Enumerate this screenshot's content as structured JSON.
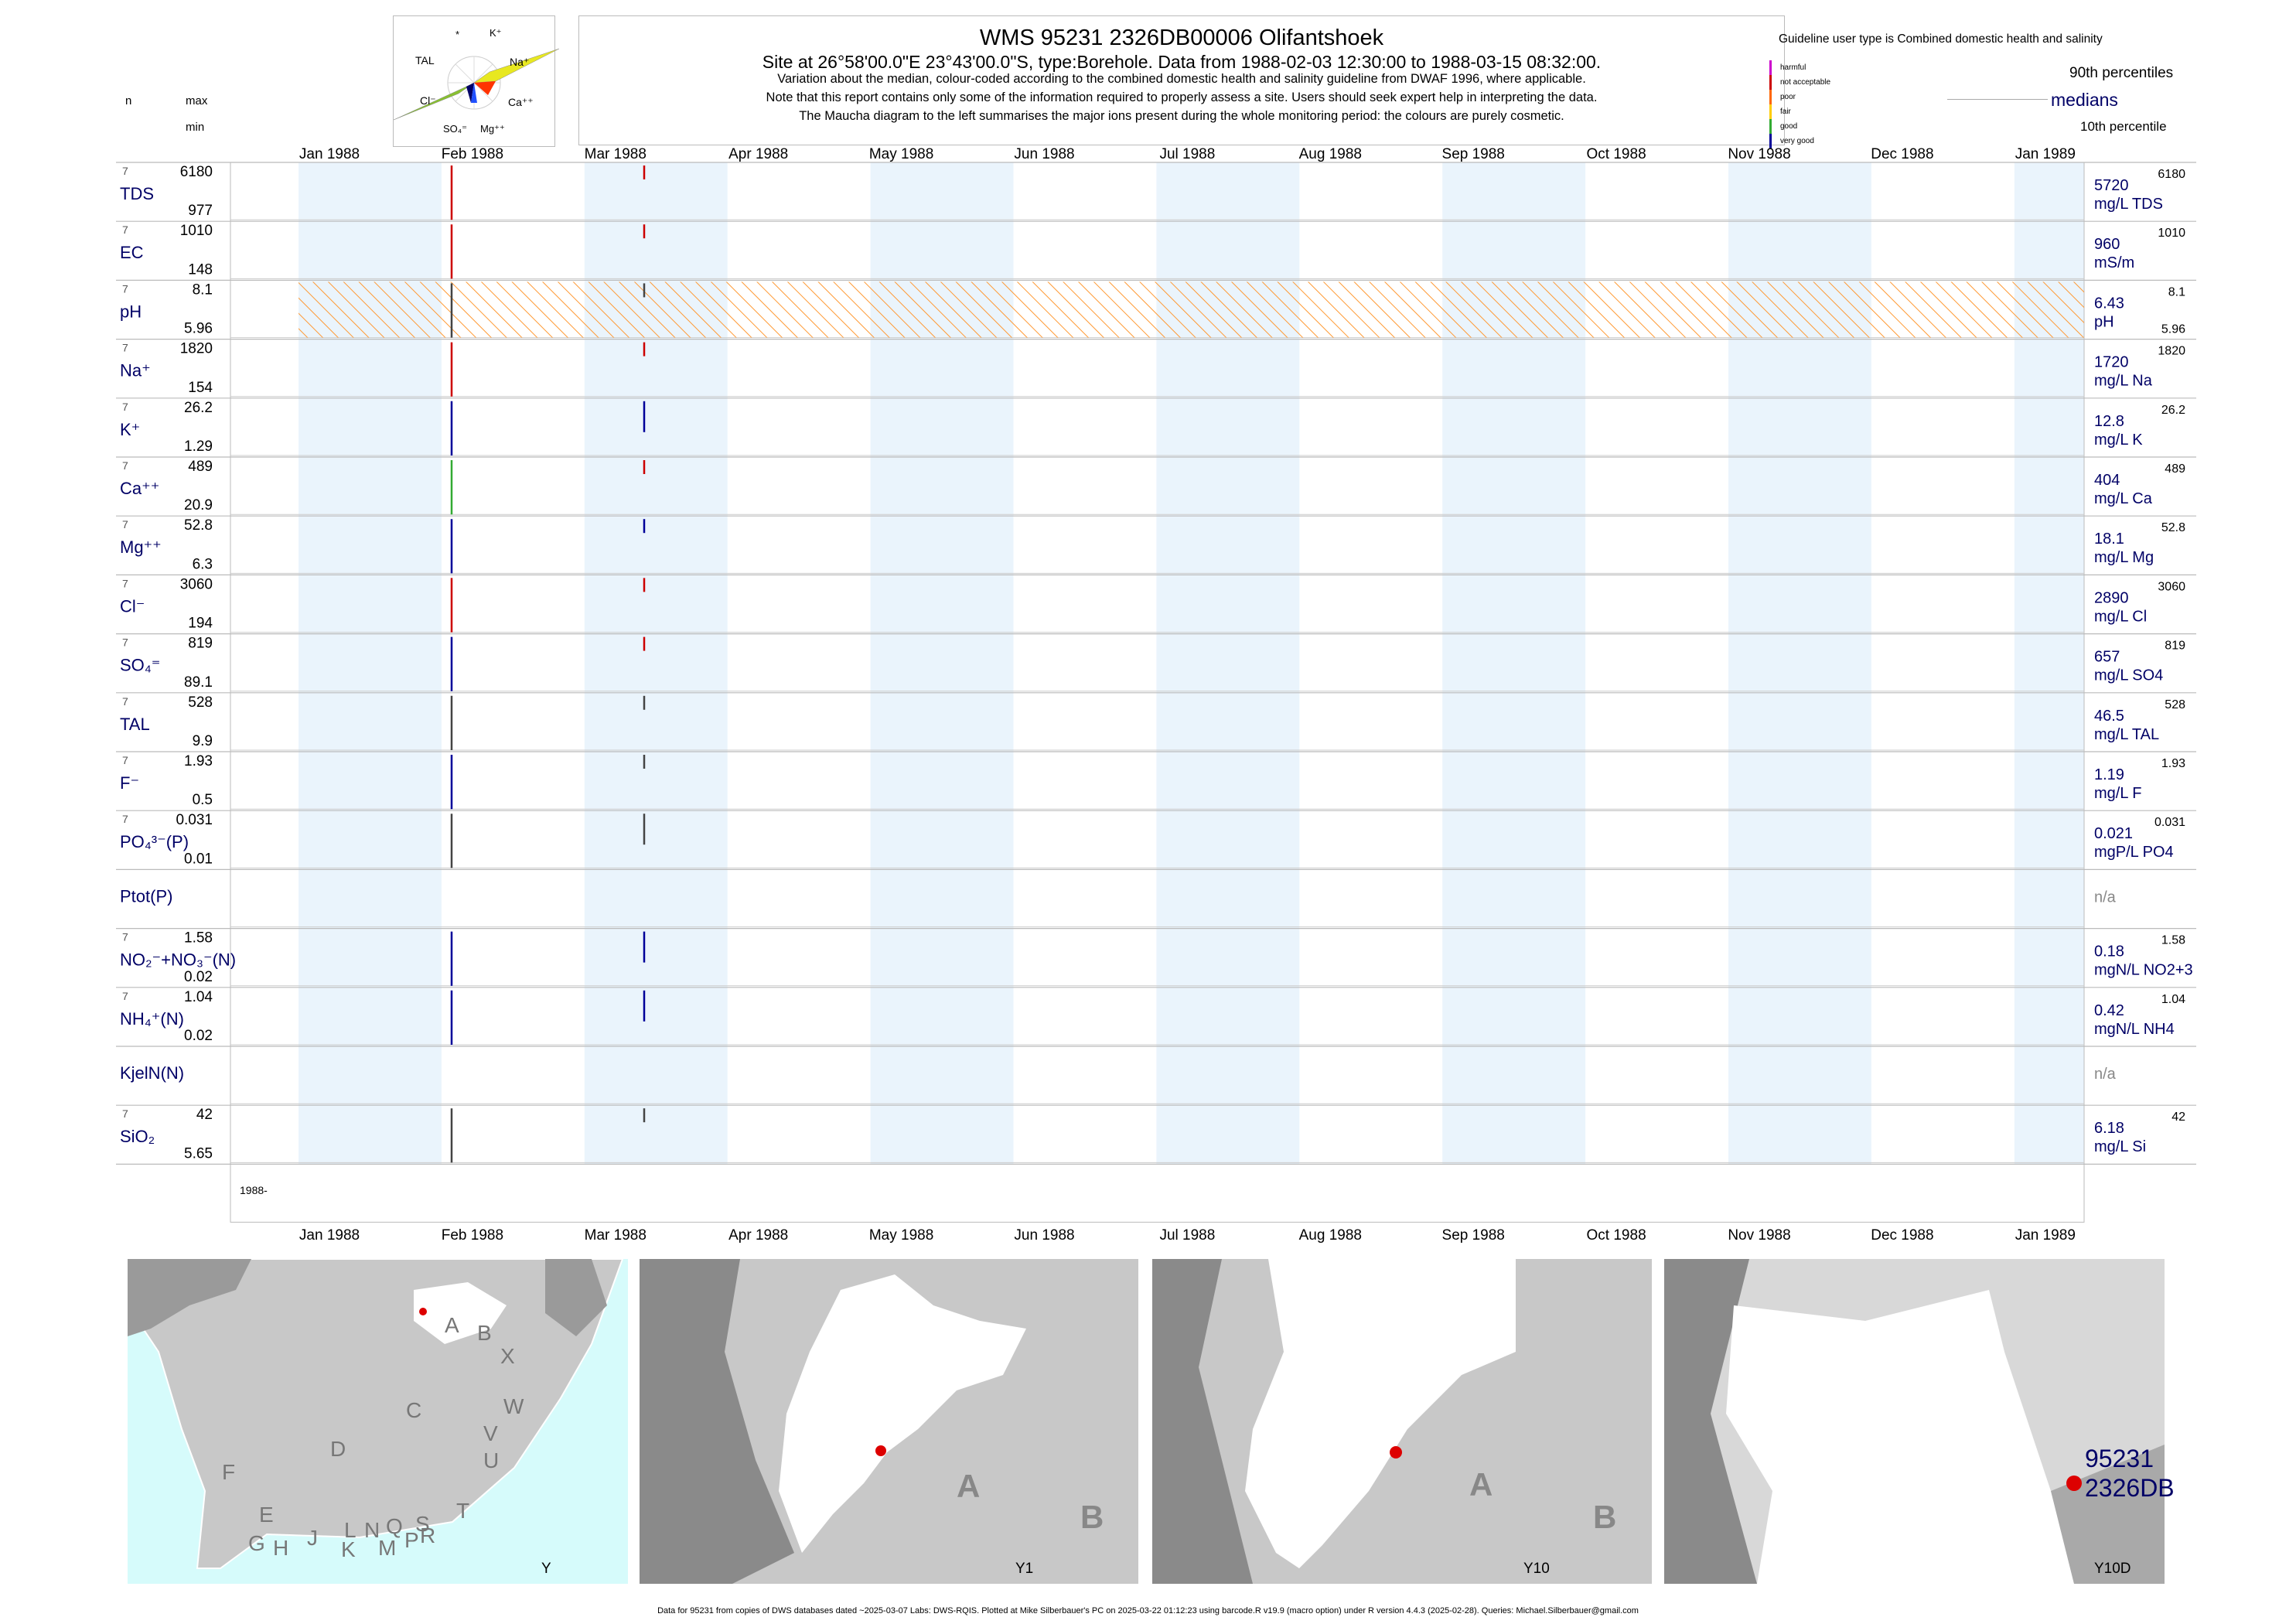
{
  "header": {
    "title": "WMS 95231 2326DB00006 Olifantshoek",
    "subtitle": "Site at 26°58'00.0\"E 23°43'00.0\"S, type:Borehole.  Data from 1988-02-03 12:30:00 to 1988-03-15 08:32:00.",
    "line1": "Variation about the median,  colour-coded according to the combined domestic health and salinity guideline from DWAF 1996, where applicable.",
    "line2": "Note that this report contains only some of the information required to properly assess a site. Users should seek expert help in interpreting the data.",
    "line3": "The Maucha diagram to the left summarises the major ions present during the whole monitoring period: the colours are purely cosmetic."
  },
  "left_header": {
    "n": "n",
    "max": "max",
    "min": "min"
  },
  "legend": {
    "guideline_title": "Guideline user type is Combined domestic health and salinity",
    "levels": [
      {
        "label": "harmful",
        "color": "#cc00cc"
      },
      {
        "label": "not acceptable",
        "color": "#cc0000"
      },
      {
        "label": "poor",
        "color": "#ff6600"
      },
      {
        "label": "fair",
        "color": "#ffcc00"
      },
      {
        "label": "good",
        "color": "#33aa33"
      },
      {
        "label": "very good",
        "color": "#000099"
      }
    ],
    "p90": "90th percentiles",
    "medians": "medians",
    "p10": "10th percentile"
  },
  "maucha": {
    "labels": [
      "*",
      "K⁺",
      "TAL",
      "Na⁺",
      "Cl⁻",
      "Ca⁺⁺",
      "SO₄⁼",
      "Mg⁺⁺"
    ]
  },
  "chart_data": {
    "type": "line",
    "x_range": [
      "1988-01",
      "1989-01"
    ],
    "months": [
      "Jan 1988",
      "Feb 1988",
      "Mar 1988",
      "Apr 1988",
      "May 1988",
      "Jun 1988",
      "Jul 1988",
      "Aug 1988",
      "Sep 1988",
      "Oct 1988",
      "Nov 1988",
      "Dec 1988",
      "Jan 1989"
    ],
    "year_label": "1988-",
    "sample_dates": [
      "1988-02-03",
      "1988-03-15"
    ],
    "series": [
      {
        "name": "TDS",
        "n": "7",
        "max": "6180",
        "min": "977",
        "median": "5720",
        "unit": "mg/L TDS",
        "p90": "6180",
        "p10": "",
        "colors": [
          "#cc0000",
          "#cc0000"
        ]
      },
      {
        "name": "EC",
        "n": "7",
        "max": "1010",
        "min": "148",
        "median": "960",
        "unit": "mS/m",
        "p90": "1010",
        "p10": "",
        "colors": [
          "#cc0000",
          "#cc0000"
        ]
      },
      {
        "name": "pH",
        "n": "7",
        "max": "8.1",
        "min": "5.96",
        "median": "6.43",
        "unit": "pH",
        "p90": "8.1",
        "p10": "5.96",
        "colors": [
          "#444444",
          "#444444"
        ]
      },
      {
        "name": "Na⁺",
        "n": "7",
        "max": "1820",
        "min": "154",
        "median": "1720",
        "unit": "mg/L Na",
        "p90": "1820",
        "p10": "",
        "colors": [
          "#cc0000",
          "#cc0000"
        ]
      },
      {
        "name": "K⁺",
        "n": "7",
        "max": "26.2",
        "min": "1.29",
        "median": "12.8",
        "unit": "mg/L K",
        "p90": "26.2",
        "p10": "",
        "colors": [
          "#000099",
          "#000099"
        ]
      },
      {
        "name": "Ca⁺⁺",
        "n": "7",
        "max": "489",
        "min": "20.9",
        "median": "404",
        "unit": "mg/L Ca",
        "p90": "489",
        "p10": "",
        "colors": [
          "#33aa33",
          "#cc0000"
        ]
      },
      {
        "name": "Mg⁺⁺",
        "n": "7",
        "max": "52.8",
        "min": "6.3",
        "median": "18.1",
        "unit": "mg/L Mg",
        "p90": "52.8",
        "p10": "",
        "colors": [
          "#000099",
          "#000099"
        ]
      },
      {
        "name": "Cl⁻",
        "n": "7",
        "max": "3060",
        "min": "194",
        "median": "2890",
        "unit": "mg/L Cl",
        "p90": "3060",
        "p10": "",
        "colors": [
          "#cc0000",
          "#cc0000"
        ]
      },
      {
        "name": "SO₄⁼",
        "n": "7",
        "max": "819",
        "min": "89.1",
        "median": "657",
        "unit": "mg/L SO4",
        "p90": "819",
        "p10": "",
        "colors": [
          "#000099",
          "#cc0000"
        ]
      },
      {
        "name": "TAL",
        "n": "7",
        "max": "528",
        "min": "9.9",
        "median": "46.5",
        "unit": "mg/L TAL",
        "p90": "528",
        "p10": "",
        "colors": [
          "#444444",
          "#444444"
        ]
      },
      {
        "name": "F⁻",
        "n": "7",
        "max": "1.93",
        "min": "0.5",
        "median": "1.19",
        "unit": "mg/L F",
        "p90": "1.93",
        "p10": "",
        "colors": [
          "#000099",
          "#444444"
        ]
      },
      {
        "name": "PO₄³⁻(P)",
        "n": "7",
        "max": "0.031",
        "min": "0.01",
        "median": "0.021",
        "unit": "mgP/L PO4",
        "p90": "0.031",
        "p10": "",
        "colors": [
          "#444444",
          "#444444"
        ]
      },
      {
        "name": "Ptot(P)",
        "n": "",
        "max": "",
        "min": "",
        "median": "n/a",
        "unit": "",
        "p90": "",
        "p10": "",
        "colors": []
      },
      {
        "name": "NO₂⁻+NO₃⁻(N)",
        "n": "7",
        "max": "1.58",
        "min": "0.02",
        "median": "0.18",
        "unit": "mgN/L NO2+3",
        "p90": "1.58",
        "p10": "",
        "colors": [
          "#000099",
          "#000099"
        ]
      },
      {
        "name": "NH₄⁺(N)",
        "n": "7",
        "max": "1.04",
        "min": "0.02",
        "median": "0.42",
        "unit": "mgN/L NH4",
        "p90": "1.04",
        "p10": "",
        "colors": [
          "#000099",
          "#000099"
        ]
      },
      {
        "name": "KjelN(N)",
        "n": "",
        "max": "",
        "min": "",
        "median": "n/a",
        "unit": "",
        "p90": "",
        "p10": "",
        "colors": []
      },
      {
        "name": "SiO₂",
        "n": "7",
        "max": "42",
        "min": "5.65",
        "median": "6.18",
        "unit": "mg/L Si",
        "p90": "42",
        "p10": "",
        "colors": [
          "#444444",
          "#444444"
        ]
      }
    ]
  },
  "maps": {
    "overview_letters": [
      "A",
      "B",
      "X",
      "C",
      "W",
      "V",
      "U",
      "D",
      "F",
      "E",
      "T",
      "G",
      "H",
      "J",
      "L",
      "N",
      "Q",
      "S",
      "K",
      "M",
      "P",
      "R"
    ],
    "panels": [
      {
        "label": "Y"
      },
      {
        "label": "Y1",
        "letters": [
          "A",
          "B"
        ]
      },
      {
        "label": "Y10",
        "letters": [
          "A",
          "B"
        ]
      },
      {
        "label": "Y10D",
        "site": "95231",
        "site2": "2326DB"
      }
    ]
  },
  "footer": "Data for 95231 from copies of DWS databases dated ~2025-03-07 Labs: DWS-RQIS. Plotted at Mike Silberbauer's PC on 2025-03-22 01:12:23 using barcode.R v19.9 (macro option) under R version 4.4.3 (2025-02-28). Queries: Michael.Silberbauer@gmail.com"
}
